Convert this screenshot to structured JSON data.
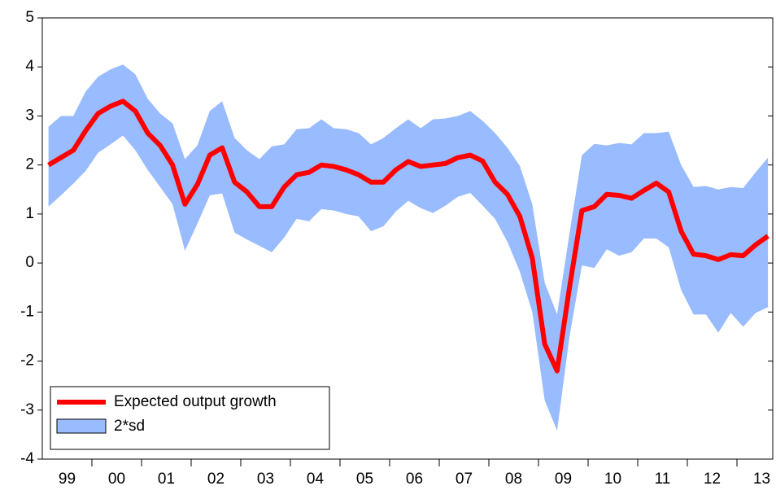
{
  "chart_data": {
    "type": "line",
    "categories": [
      null,
      "99",
      null,
      null,
      null,
      "00",
      null,
      null,
      null,
      "01",
      null,
      null,
      null,
      "02",
      null,
      null,
      null,
      "03",
      null,
      null,
      null,
      "04",
      null,
      null,
      null,
      "05",
      null,
      null,
      null,
      "06",
      null,
      null,
      null,
      "07",
      null,
      null,
      null,
      "08",
      null,
      null,
      null,
      "09",
      null,
      null,
      null,
      "10",
      null,
      null,
      null,
      "11",
      null,
      null,
      null,
      "12",
      null,
      null,
      null,
      "13",
      null
    ],
    "series": [
      {
        "name": "Expected output growth",
        "color": "#ff0000",
        "values": [
          2.0,
          2.15,
          2.3,
          2.7,
          3.05,
          3.2,
          3.3,
          3.1,
          2.65,
          2.4,
          2.0,
          1.2,
          1.6,
          2.2,
          2.35,
          1.65,
          1.45,
          1.15,
          1.15,
          1.55,
          1.8,
          1.85,
          2.0,
          1.97,
          1.9,
          1.8,
          1.65,
          1.65,
          1.9,
          2.07,
          1.97,
          2.0,
          2.03,
          2.15,
          2.2,
          2.08,
          1.65,
          1.4,
          0.95,
          0.1,
          -1.65,
          -2.2,
          -0.5,
          1.07,
          1.15,
          1.4,
          1.38,
          1.32,
          1.48,
          1.63,
          1.45,
          0.65,
          0.18,
          0.15,
          0.07,
          0.17,
          0.15,
          0.37,
          0.55
        ]
      },
      {
        "name": "2*sd",
        "color": "#99bbff",
        "upper": [
          2.78,
          3.0,
          3.0,
          3.5,
          3.8,
          3.95,
          4.05,
          3.85,
          3.35,
          3.05,
          2.85,
          2.12,
          2.4,
          3.1,
          3.3,
          2.55,
          2.3,
          2.12,
          2.38,
          2.42,
          2.73,
          2.75,
          2.93,
          2.75,
          2.73,
          2.65,
          2.42,
          2.55,
          2.75,
          2.93,
          2.75,
          2.93,
          2.95,
          3.0,
          3.1,
          2.9,
          2.65,
          2.35,
          1.98,
          1.2,
          -0.4,
          -1.05,
          0.6,
          2.2,
          2.43,
          2.4,
          2.45,
          2.42,
          2.65,
          2.65,
          2.68,
          2.0,
          1.55,
          1.57,
          1.5,
          1.55,
          1.53,
          1.85,
          2.15
        ],
        "lower": [
          1.15,
          1.38,
          1.62,
          1.88,
          2.25,
          2.42,
          2.6,
          2.3,
          1.9,
          1.55,
          1.2,
          0.25,
          0.8,
          1.38,
          1.42,
          0.62,
          0.48,
          0.35,
          0.22,
          0.52,
          0.9,
          0.85,
          1.1,
          1.07,
          1.0,
          0.95,
          0.65,
          0.75,
          1.05,
          1.27,
          1.12,
          1.02,
          1.17,
          1.35,
          1.43,
          1.17,
          0.9,
          0.43,
          -0.18,
          -1.0,
          -2.8,
          -3.42,
          -1.5,
          -0.05,
          -0.1,
          0.28,
          0.15,
          0.22,
          0.5,
          0.5,
          0.32,
          -0.55,
          -1.05,
          -1.05,
          -1.42,
          -1.02,
          -1.3,
          -1.02,
          -0.9
        ]
      }
    ],
    "ylim": [
      -4,
      5
    ],
    "yticks": [
      -4,
      -3,
      -2,
      -1,
      0,
      1,
      2,
      3,
      4,
      5
    ],
    "grid": false,
    "legend": "lower-left"
  }
}
